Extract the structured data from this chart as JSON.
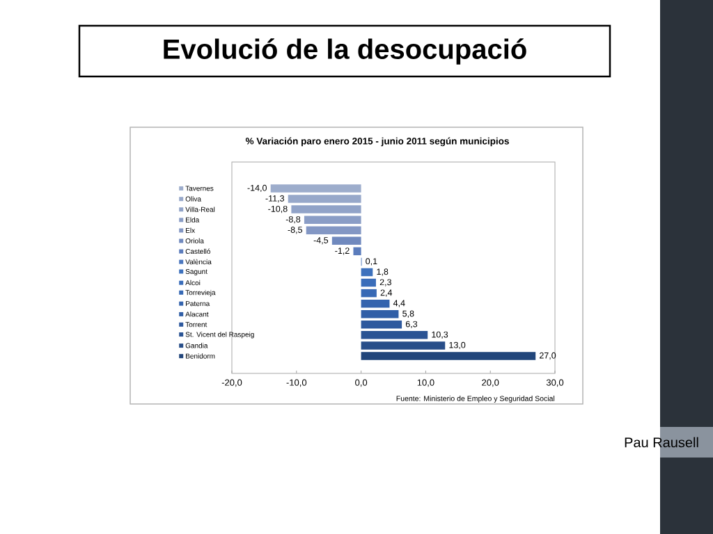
{
  "chart_data": {
    "type": "bar",
    "orientation": "horizontal",
    "title": "Evolució de la desocupació",
    "subtitle": "% Variación paro enero 2015 - junio 2011 según municipios",
    "categories": [
      "Tavernes",
      "Oliva",
      "Villa-Real",
      "Elda",
      "Elx",
      "Oriola",
      "Castelló",
      "València",
      "Sagunt",
      "Alcoi",
      "Torrevieja",
      "Paterna",
      "Alacant",
      "Torrent",
      "St. Vicent del Raspeig",
      "Gandia",
      "Benidorm"
    ],
    "values": [
      -14.0,
      -11.3,
      -10.8,
      -8.8,
      -8.5,
      -4.5,
      -1.2,
      0.1,
      1.8,
      2.3,
      2.4,
      4.4,
      5.8,
      6.3,
      10.3,
      13.0,
      27.0
    ],
    "value_labels": [
      "-14,0",
      "-11,3",
      "-10,8",
      "-8,8",
      "-8,5",
      "-4,5",
      "-1,2",
      "0,1",
      "1,8",
      "2,3",
      "2,4",
      "4,4",
      "5,8",
      "6,3",
      "10,3",
      "13,0",
      "27,0"
    ],
    "colors": [
      "#9dadcc",
      "#97a8ca",
      "#91a3c8",
      "#8a9dc6",
      "#8397c4",
      "#7089be",
      "#5b7cbc",
      "#4a76be",
      "#3d71bd",
      "#3a6dba",
      "#3769b5",
      "#3464ae",
      "#315fa7",
      "#2e599e",
      "#2b5494",
      "#284e89",
      "#22467b"
    ],
    "xlim": [
      -20,
      30
    ],
    "xticks": [
      {
        "value": -20,
        "label": "-20,0"
      },
      {
        "value": -10,
        "label": "-10,0"
      },
      {
        "value": 0,
        "label": "0,0"
      },
      {
        "value": 10,
        "label": "10,0"
      },
      {
        "value": 20,
        "label": "20,0"
      },
      {
        "value": 30,
        "label": "30,0"
      }
    ],
    "annotations": [
      "Fuente: Ministerio de Empleo y Seguridad Social",
      "Pau Rausell"
    ]
  }
}
